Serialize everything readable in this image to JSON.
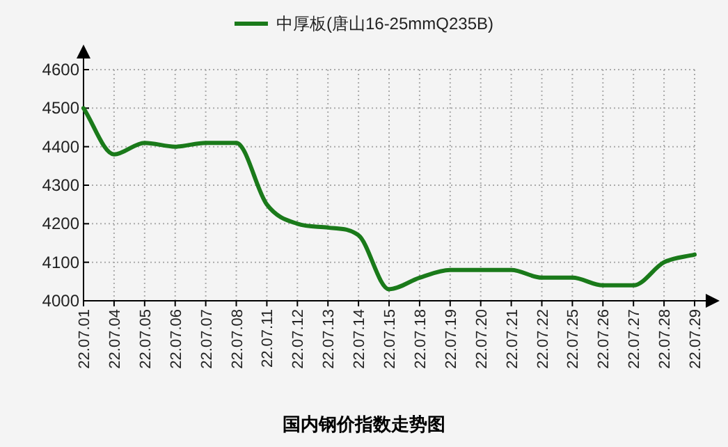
{
  "chart_data": {
    "type": "line",
    "title": "国内钢价指数走势图",
    "categories": [
      "22.07.01",
      "22.07.04",
      "22.07.05",
      "22.07.06",
      "22.07.07",
      "22.07.08",
      "22.07.11",
      "22.07.12",
      "22.07.13",
      "22.07.14",
      "22.07.15",
      "22.07.18",
      "22.07.19",
      "22.07.20",
      "22.07.21",
      "22.07.22",
      "22.07.25",
      "22.07.26",
      "22.07.27",
      "22.07.28",
      "22.07.29"
    ],
    "series": [
      {
        "name": "中厚板(唐山16-25mmQ235B)",
        "color": "#1a7a1a",
        "values": [
          4500,
          4380,
          4410,
          4400,
          4410,
          4410,
          4250,
          4200,
          4190,
          4170,
          4030,
          4060,
          4080,
          4080,
          4080,
          4060,
          4060,
          4040,
          4040,
          4100,
          4120
        ]
      }
    ],
    "ylim": [
      4000,
      4600
    ],
    "yticks": [
      4000,
      4100,
      4200,
      4300,
      4400,
      4500,
      4600
    ],
    "grid": true,
    "legend": "top",
    "marker": "none",
    "line_style": "solid"
  }
}
